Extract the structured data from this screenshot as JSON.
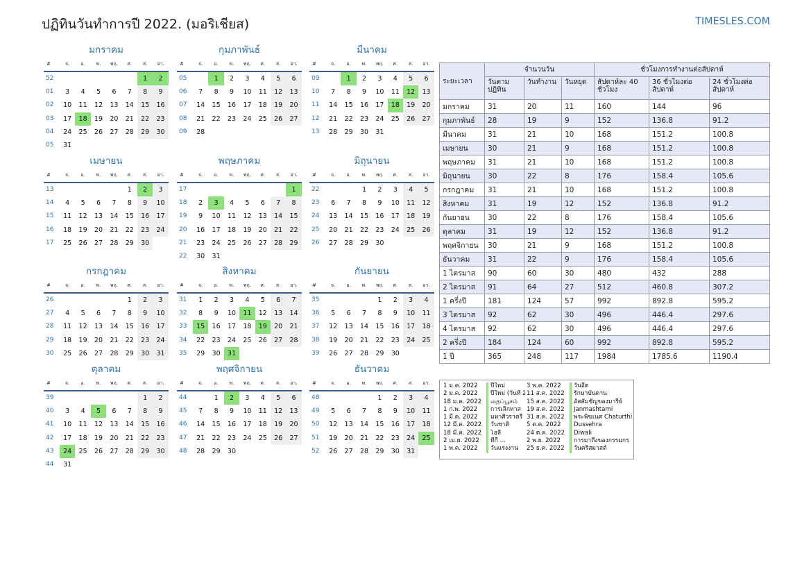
{
  "header": {
    "title": "ปฏิทินวันทำการปี 2022. (มอริเชียส)",
    "site": "TIMESLES.COM"
  },
  "weekday_labels": [
    "#",
    "จ.",
    "อ.",
    "พ.",
    "พฤ.",
    "ศ.",
    "ส.",
    "อา."
  ],
  "months": [
    {
      "name": "มกราคม",
      "first": 6,
      "days": 31,
      "weeks": [
        "52",
        "01",
        "02",
        "03",
        "04",
        "05"
      ],
      "hol": [
        1,
        2,
        18
      ]
    },
    {
      "name": "กุมภาพันธ์",
      "first": 2,
      "days": 28,
      "weeks": [
        "05",
        "06",
        "07",
        "08",
        "09"
      ],
      "hol": [
        1
      ]
    },
    {
      "name": "มีนาคม",
      "first": 2,
      "days": 31,
      "weeks": [
        "09",
        "10",
        "11",
        "12",
        "13"
      ],
      "hol": [
        1,
        12,
        18
      ]
    },
    {
      "name": "เมษายน",
      "first": 5,
      "days": 30,
      "weeks": [
        "13",
        "14",
        "15",
        "16",
        "17"
      ],
      "hol": [
        2
      ]
    },
    {
      "name": "พฤษภาคม",
      "first": 7,
      "days": 31,
      "weeks": [
        "17",
        "18",
        "19",
        "20",
        "21",
        "22"
      ],
      "hol": [
        1,
        3
      ]
    },
    {
      "name": "มิถุนายน",
      "first": 3,
      "days": 30,
      "weeks": [
        "22",
        "23",
        "24",
        "25",
        "26"
      ],
      "hol": []
    },
    {
      "name": "กรกฎาคม",
      "first": 5,
      "days": 31,
      "weeks": [
        "26",
        "27",
        "28",
        "29",
        "30"
      ],
      "hol": []
    },
    {
      "name": "สิงหาคม",
      "first": 1,
      "days": 31,
      "weeks": [
        "31",
        "32",
        "33",
        "34",
        "35"
      ],
      "hol": [
        11,
        15,
        19,
        31
      ]
    },
    {
      "name": "กันยายน",
      "first": 4,
      "days": 30,
      "weeks": [
        "35",
        "36",
        "37",
        "38",
        "39"
      ],
      "hol": []
    },
    {
      "name": "ตุลาคม",
      "first": 6,
      "days": 31,
      "weeks": [
        "39",
        "40",
        "41",
        "42",
        "43",
        "44"
      ],
      "hol": [
        5,
        24
      ]
    },
    {
      "name": "พฤศจิกายน",
      "first": 2,
      "days": 30,
      "weeks": [
        "44",
        "45",
        "46",
        "47",
        "48"
      ],
      "hol": [
        2
      ]
    },
    {
      "name": "ธันวาคม",
      "first": 4,
      "days": 31,
      "weeks": [
        "48",
        "49",
        "50",
        "51",
        "52"
      ],
      "hol": [
        25
      ]
    }
  ],
  "stats": {
    "col_period": "ระยะเวลา",
    "col_days": "จำนวนวัน",
    "col_hours": "ชั่วโมงการทำงานต่อสัปดาห์",
    "sub": [
      "วันตามปฏิทิน",
      "วันทำงาน",
      "วันหยุด",
      "สัปดาห์ละ 40 ชั่วโมง",
      "36 ชั่วโมงต่อสัปดาห์",
      "24 ชั่วโมงต่อสัปดาห์"
    ],
    "rows": [
      [
        "มกราคม",
        "31",
        "20",
        "11",
        "160",
        "144",
        "96"
      ],
      [
        "กุมภาพันธ์",
        "28",
        "19",
        "9",
        "152",
        "136.8",
        "91.2"
      ],
      [
        "มีนาคม",
        "31",
        "21",
        "10",
        "168",
        "151.2",
        "100.8"
      ],
      [
        "เมษายน",
        "30",
        "21",
        "9",
        "168",
        "151.2",
        "100.8"
      ],
      [
        "พฤษภาคม",
        "31",
        "21",
        "10",
        "168",
        "151.2",
        "100.8"
      ],
      [
        "มิถุนายน",
        "30",
        "22",
        "8",
        "176",
        "158.4",
        "105.6"
      ],
      [
        "กรกฎาคม",
        "31",
        "21",
        "10",
        "168",
        "151.2",
        "100.8"
      ],
      [
        "สิงหาคม",
        "31",
        "19",
        "12",
        "152",
        "136.8",
        "91.2"
      ],
      [
        "กันยายน",
        "30",
        "22",
        "8",
        "176",
        "158.4",
        "105.6"
      ],
      [
        "ตุลาคม",
        "31",
        "19",
        "12",
        "152",
        "136.8",
        "91.2"
      ],
      [
        "พฤศจิกายน",
        "30",
        "21",
        "9",
        "168",
        "151.2",
        "100.8"
      ],
      [
        "ธันวาคม",
        "31",
        "22",
        "9",
        "176",
        "158.4",
        "105.6"
      ],
      [
        "1 ไตรมาส",
        "90",
        "60",
        "30",
        "480",
        "432",
        "288"
      ],
      [
        "2 ไตรมาส",
        "91",
        "64",
        "27",
        "512",
        "460.8",
        "307.2"
      ],
      [
        "1 ครึ่งปี",
        "181",
        "124",
        "57",
        "992",
        "892.8",
        "595.2"
      ],
      [
        "3 ไตรมาส",
        "92",
        "62",
        "30",
        "496",
        "446.4",
        "297.6"
      ],
      [
        "4 ไตรมาส",
        "92",
        "62",
        "30",
        "496",
        "446.4",
        "297.6"
      ],
      [
        "2 ครึ่งปี",
        "184",
        "124",
        "60",
        "992",
        "892.8",
        "595.2"
      ],
      [
        "1 ปี",
        "365",
        "248",
        "117",
        "1984",
        "1785.6",
        "1190.4"
      ]
    ]
  },
  "holidays": [
    {
      "date": "1 ม.ค. 2022",
      "name": "ปีใหม่"
    },
    {
      "date": "2 ม.ค. 2022",
      "name": "ปีใหม่ (วันที่ 2)"
    },
    {
      "date": "18 ม.ค. 2022",
      "name": "தைப்பூசம்"
    },
    {
      "date": "1 ก.พ. 2022",
      "name": "การเลิกทาส"
    },
    {
      "date": "1 มี.ค. 2022",
      "name": "มหาศิวราตรี"
    },
    {
      "date": "12 มี.ค. 2022",
      "name": "วันชาติ"
    },
    {
      "date": "18 มี.ค. 2022",
      "name": "โฮลี"
    },
    {
      "date": "2 เม.ย. 2022",
      "name": "ที่กี่ ..."
    },
    {
      "date": "1 พ.ค. 2022",
      "name": "วันแรงงาน"
    },
    {
      "date": "3 พ.ค. 2022",
      "name": "วันอีด"
    },
    {
      "date": "11 ส.ค. 2022",
      "name": "รักษาบันดาน"
    },
    {
      "date": "15 ส.ค. 2022",
      "name": "อัสสัมชัญของมารีย์"
    },
    {
      "date": "19 ส.ค. 2022",
      "name": "Janmashtami"
    },
    {
      "date": "31 ส.ค. 2022",
      "name": "พระพิฆเนศ Chaturthi"
    },
    {
      "date": "5 ต.ค. 2022",
      "name": "Dussehra"
    },
    {
      "date": "24 ต.ค. 2022",
      "name": "Diwali"
    },
    {
      "date": "2 พ.ย. 2022",
      "name": "การมาถึงของกรรมกร"
    },
    {
      "date": "25 ธ.ค. 2022",
      "name": "วันคริสมาสต์"
    }
  ]
}
